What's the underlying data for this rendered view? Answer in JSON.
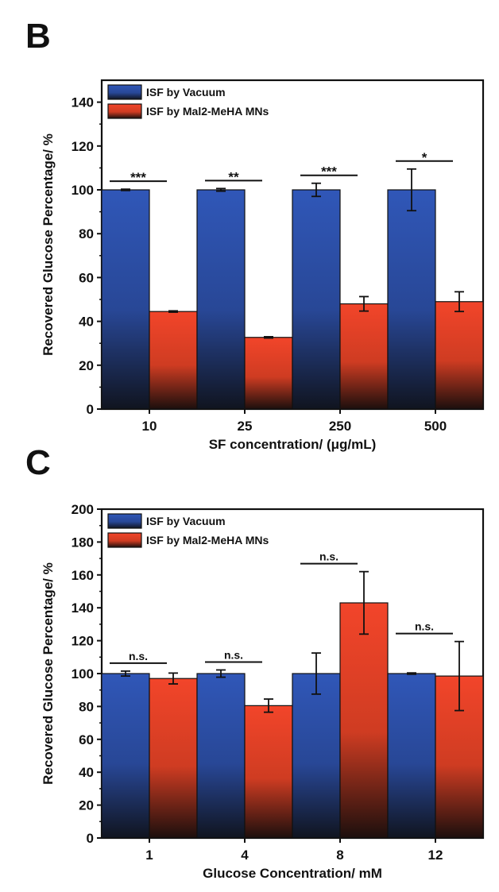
{
  "chart_data": [
    {
      "panel": "B",
      "type": "bar",
      "xlabel": "SF concentration/ (μg/mL)",
      "ylabel": "Recovered Glucose Percentage/ %",
      "ylim": [
        0,
        150
      ],
      "yticks": [
        0,
        20,
        40,
        60,
        80,
        100,
        120,
        140
      ],
      "categories": [
        "10",
        "25",
        "250",
        "500"
      ],
      "legend_position": "top-left",
      "series": [
        {
          "name": "ISF by Vacuum",
          "color": "#2d4fa8",
          "values": [
            100,
            100,
            100,
            100
          ],
          "errors": [
            0.3,
            0.6,
            3,
            9.5
          ]
        },
        {
          "name": "ISF by Mal2-MeHA MNs",
          "color": "#e8442a",
          "values": [
            44.5,
            32.7,
            48,
            49
          ],
          "errors": [
            0.3,
            0.3,
            3.3,
            4.5
          ]
        }
      ],
      "significance": [
        "***",
        "**",
        "***",
        "*"
      ]
    },
    {
      "panel": "C",
      "type": "bar",
      "xlabel": "Glucose Concentration/ mM",
      "ylabel": "Recovered Glucose Percentage/ %",
      "ylim": [
        0,
        200
      ],
      "yticks": [
        0,
        20,
        40,
        60,
        80,
        100,
        120,
        140,
        160,
        180,
        200
      ],
      "categories": [
        "1",
        "4",
        "8",
        "12"
      ],
      "legend_position": "top-left",
      "series": [
        {
          "name": "ISF by Vacuum",
          "color": "#2d4fa8",
          "values": [
            100,
            100,
            100,
            100
          ],
          "errors": [
            1.5,
            2.2,
            12.5,
            0.4
          ]
        },
        {
          "name": "ISF by Mal2-MeHA MNs",
          "color": "#e8442a",
          "values": [
            97,
            80.5,
            143,
            98.5
          ],
          "errors": [
            3.3,
            4,
            19,
            21
          ]
        }
      ],
      "significance": [
        "n.s.",
        "n.s.",
        "n.s.",
        "n.s."
      ]
    }
  ]
}
